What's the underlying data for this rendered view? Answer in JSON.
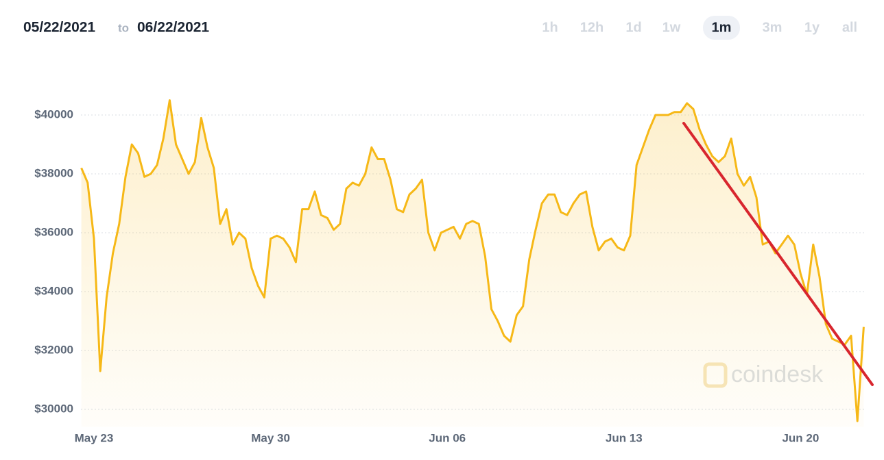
{
  "header": {
    "from": "05/22/2021",
    "to_word": "to",
    "to": "06/22/2021"
  },
  "ranges": [
    "1h",
    "12h",
    "1d",
    "1w",
    "1m",
    "3m",
    "1y",
    "all"
  ],
  "selected_range": 4,
  "chart_data": {
    "type": "line",
    "color": "#f6b817",
    "watermark": "coindesk",
    "grid": true,
    "ylim": [
      29400,
      41600
    ],
    "yticks": [
      {
        "value": 30000,
        "label": "$30000"
      },
      {
        "value": 32000,
        "label": "$32000"
      },
      {
        "value": 34000,
        "label": "$34000"
      },
      {
        "value": 36000,
        "label": "$36000"
      },
      {
        "value": 38000,
        "label": "$38000"
      },
      {
        "value": 40000,
        "label": "$40000"
      }
    ],
    "categories": [
      null,
      null,
      "May 23",
      null,
      null,
      null,
      null,
      null,
      null,
      null,
      null,
      null,
      null,
      null,
      null,
      null,
      null,
      null,
      null,
      null,
      null,
      null,
      null,
      null,
      null,
      null,
      null,
      null,
      null,
      null,
      "May 30",
      null,
      null,
      null,
      null,
      null,
      null,
      null,
      null,
      null,
      null,
      null,
      null,
      null,
      null,
      null,
      null,
      null,
      null,
      null,
      null,
      null,
      null,
      null,
      null,
      null,
      null,
      null,
      "Jun 06",
      null,
      null,
      null,
      null,
      null,
      null,
      null,
      null,
      null,
      null,
      null,
      null,
      null,
      null,
      null,
      null,
      null,
      null,
      null,
      null,
      null,
      null,
      null,
      null,
      null,
      null,
      null,
      "Jun 13",
      null,
      null,
      null,
      null,
      null,
      null,
      null,
      null,
      null,
      null,
      null,
      null,
      null,
      null,
      null,
      null,
      null,
      null,
      null,
      null,
      null,
      null,
      null,
      null,
      null,
      null,
      null,
      "Jun 20",
      null,
      null,
      null,
      null,
      null,
      null,
      null,
      null,
      null,
      null
    ],
    "values": [
      38200,
      37700,
      35800,
      31300,
      33800,
      35300,
      36300,
      37900,
      39000,
      38700,
      37900,
      38000,
      38300,
      39200,
      40500,
      39000,
      38500,
      38000,
      38400,
      39900,
      38900,
      38200,
      36300,
      36800,
      35600,
      36000,
      35800,
      34800,
      34200,
      33800,
      35800,
      35900,
      35800,
      35500,
      35000,
      36800,
      36800,
      37400,
      36600,
      36500,
      36100,
      36300,
      37500,
      37700,
      37600,
      38000,
      38900,
      38500,
      38500,
      37800,
      36800,
      36700,
      37300,
      37500,
      37800,
      36000,
      35400,
      36000,
      36100,
      36200,
      35800,
      36300,
      36400,
      36300,
      35200,
      33400,
      33000,
      32500,
      32300,
      33200,
      33500,
      35100,
      36100,
      37000,
      37300,
      37300,
      36700,
      36600,
      37000,
      37300,
      37400,
      36200,
      35400,
      35700,
      35800,
      35500,
      35400,
      35900,
      38300,
      38900,
      39500,
      40000,
      40000,
      40000,
      40100,
      40100,
      40400,
      40200,
      39500,
      39000,
      38600,
      38400,
      38600,
      39200,
      38000,
      37600,
      37900,
      37200,
      35600,
      35700,
      35300,
      35600,
      35900,
      35600,
      34600,
      33900,
      35600,
      34500,
      32900,
      32400,
      32300,
      32200,
      32500,
      29600,
      32800
    ]
  }
}
